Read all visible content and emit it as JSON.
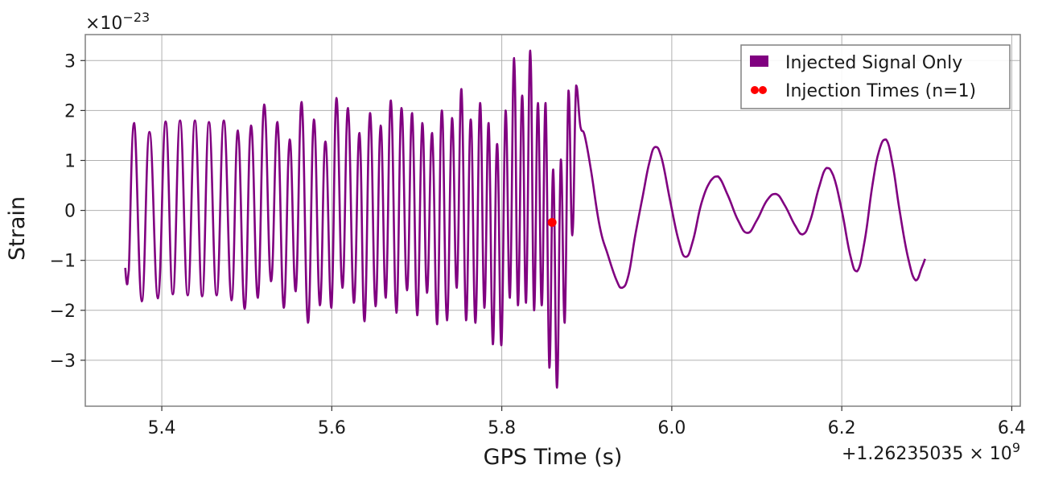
{
  "chart_data": {
    "type": "line",
    "xlabel": "GPS Time (s)",
    "ylabel": "Strain",
    "x_offset_label": "+1.26235035",
    "x_offset_exp": "9",
    "y_scale_label": "×10",
    "y_scale_exp": "−23",
    "xlim": [
      5.31,
      6.41
    ],
    "ylim": [
      -3.92,
      3.52
    ],
    "xticks": [
      5.4,
      5.6,
      5.8,
      6.0,
      6.2,
      6.4
    ],
    "xtick_labels": [
      "5.4",
      "5.6",
      "5.8",
      "6.0",
      "6.2",
      "6.4"
    ],
    "yticks": [
      -3,
      -2,
      -1,
      0,
      1,
      2,
      3
    ],
    "ytick_labels": [
      "−3",
      "−2",
      "−1",
      "0",
      "1",
      "2",
      "3"
    ],
    "grid": true,
    "legend_position": "top-right",
    "colors": {
      "signal": "#800080",
      "injection": "#ff0000",
      "grid": "#b0b0b0",
      "frame": "#808080"
    },
    "series": [
      {
        "name": "Injected Signal Only",
        "points": [
          [
            5.357,
            -1.15
          ],
          [
            5.359,
            -1.48
          ],
          [
            5.3612,
            -1.2
          ],
          [
            5.3675,
            1.75
          ],
          [
            5.3765,
            -1.82
          ],
          [
            5.3855,
            1.57
          ],
          [
            5.3955,
            -1.76
          ],
          [
            5.4045,
            1.78
          ],
          [
            5.413,
            -1.68
          ],
          [
            5.4215,
            1.8
          ],
          [
            5.4305,
            -1.7
          ],
          [
            5.439,
            1.8
          ],
          [
            5.4475,
            -1.72
          ],
          [
            5.4555,
            1.77
          ],
          [
            5.4645,
            -1.7
          ],
          [
            5.473,
            1.8
          ],
          [
            5.482,
            -1.8
          ],
          [
            5.4895,
            1.6
          ],
          [
            5.4975,
            -1.97
          ],
          [
            5.505,
            1.7
          ],
          [
            5.513,
            -1.75
          ],
          [
            5.5205,
            2.12
          ],
          [
            5.5285,
            -1.42
          ],
          [
            5.536,
            1.77
          ],
          [
            5.5435,
            -1.95
          ],
          [
            5.5505,
            1.42
          ],
          [
            5.5575,
            -1.62
          ],
          [
            5.5645,
            2.17
          ],
          [
            5.572,
            -2.25
          ],
          [
            5.579,
            1.82
          ],
          [
            5.586,
            -1.9
          ],
          [
            5.5925,
            1.38
          ],
          [
            5.5995,
            -1.95
          ],
          [
            5.6055,
            2.25
          ],
          [
            5.6125,
            -1.55
          ],
          [
            5.619,
            2.05
          ],
          [
            5.626,
            -1.85
          ],
          [
            5.6325,
            1.55
          ],
          [
            5.6385,
            -2.22
          ],
          [
            5.645,
            1.95
          ],
          [
            5.6515,
            -1.92
          ],
          [
            5.6575,
            1.7
          ],
          [
            5.6635,
            -1.75
          ],
          [
            5.6695,
            2.2
          ],
          [
            5.676,
            -2.05
          ],
          [
            5.682,
            2.05
          ],
          [
            5.6885,
            -1.6
          ],
          [
            5.6945,
            1.95
          ],
          [
            5.7005,
            -2.1
          ],
          [
            5.7065,
            1.75
          ],
          [
            5.712,
            -1.65
          ],
          [
            5.718,
            1.55
          ],
          [
            5.724,
            -2.28
          ],
          [
            5.7295,
            2.0
          ],
          [
            5.7355,
            -2.2
          ],
          [
            5.7415,
            1.85
          ],
          [
            5.747,
            -1.55
          ],
          [
            5.7525,
            2.43
          ],
          [
            5.758,
            -2.2
          ],
          [
            5.7635,
            1.82
          ],
          [
            5.769,
            -2.25
          ],
          [
            5.7745,
            2.15
          ],
          [
            5.7795,
            -1.95
          ],
          [
            5.7845,
            1.75
          ],
          [
            5.7895,
            -2.68
          ],
          [
            5.7945,
            1.33
          ],
          [
            5.7995,
            -2.7
          ],
          [
            5.8045,
            2.0
          ],
          [
            5.8095,
            -1.75
          ],
          [
            5.8145,
            3.05
          ],
          [
            5.819,
            -1.9
          ],
          [
            5.824,
            2.3
          ],
          [
            5.8285,
            -1.85
          ],
          [
            5.8335,
            3.2
          ],
          [
            5.838,
            -2.0
          ],
          [
            5.8425,
            2.15
          ],
          [
            5.847,
            -1.9
          ],
          [
            5.8515,
            2.15
          ],
          [
            5.856,
            -3.15
          ],
          [
            5.8605,
            0.82
          ],
          [
            5.865,
            -3.55
          ],
          [
            5.8695,
            1.02
          ],
          [
            5.874,
            -2.25
          ],
          [
            5.8785,
            2.4
          ],
          [
            5.883,
            -0.5
          ],
          [
            5.8875,
            2.5
          ],
          [
            5.8925,
            1.68
          ],
          [
            5.8975,
            1.5
          ],
          [
            5.905,
            0.8
          ],
          [
            5.915,
            -0.3
          ],
          [
            5.925,
            -0.9
          ],
          [
            5.935,
            -1.4
          ],
          [
            5.9415,
            -1.55
          ],
          [
            5.949,
            -1.3
          ],
          [
            5.957,
            -0.5
          ],
          [
            5.966,
            0.3
          ],
          [
            5.9735,
            0.95
          ],
          [
            5.9805,
            1.27
          ],
          [
            5.988,
            1.05
          ],
          [
            5.998,
            0.2
          ],
          [
            6.008,
            -0.6
          ],
          [
            6.0165,
            -0.93
          ],
          [
            6.025,
            -0.6
          ],
          [
            6.035,
            0.15
          ],
          [
            6.046,
            0.6
          ],
          [
            6.0545,
            0.68
          ],
          [
            6.066,
            0.3
          ],
          [
            6.078,
            -0.2
          ],
          [
            6.089,
            -0.45
          ],
          [
            6.1,
            -0.2
          ],
          [
            6.112,
            0.2
          ],
          [
            6.1225,
            0.33
          ],
          [
            6.133,
            0.1
          ],
          [
            6.145,
            -0.3
          ],
          [
            6.154,
            -0.48
          ],
          [
            6.163,
            -0.2
          ],
          [
            6.173,
            0.45
          ],
          [
            6.182,
            0.85
          ],
          [
            6.19,
            0.7
          ],
          [
            6.2,
            0.0
          ],
          [
            6.21,
            -0.9
          ],
          [
            6.218,
            -1.22
          ],
          [
            6.227,
            -0.6
          ],
          [
            6.236,
            0.5
          ],
          [
            6.244,
            1.2
          ],
          [
            6.252,
            1.42
          ],
          [
            6.26,
            0.9
          ],
          [
            6.268,
            0.0
          ],
          [
            6.278,
            -0.95
          ],
          [
            6.287,
            -1.4
          ],
          [
            6.294,
            -1.15
          ],
          [
            6.298,
            -0.97
          ]
        ]
      },
      {
        "name": "Injection Times (n=1)",
        "points": [
          [
            5.8592,
            -0.24
          ]
        ]
      }
    ]
  }
}
